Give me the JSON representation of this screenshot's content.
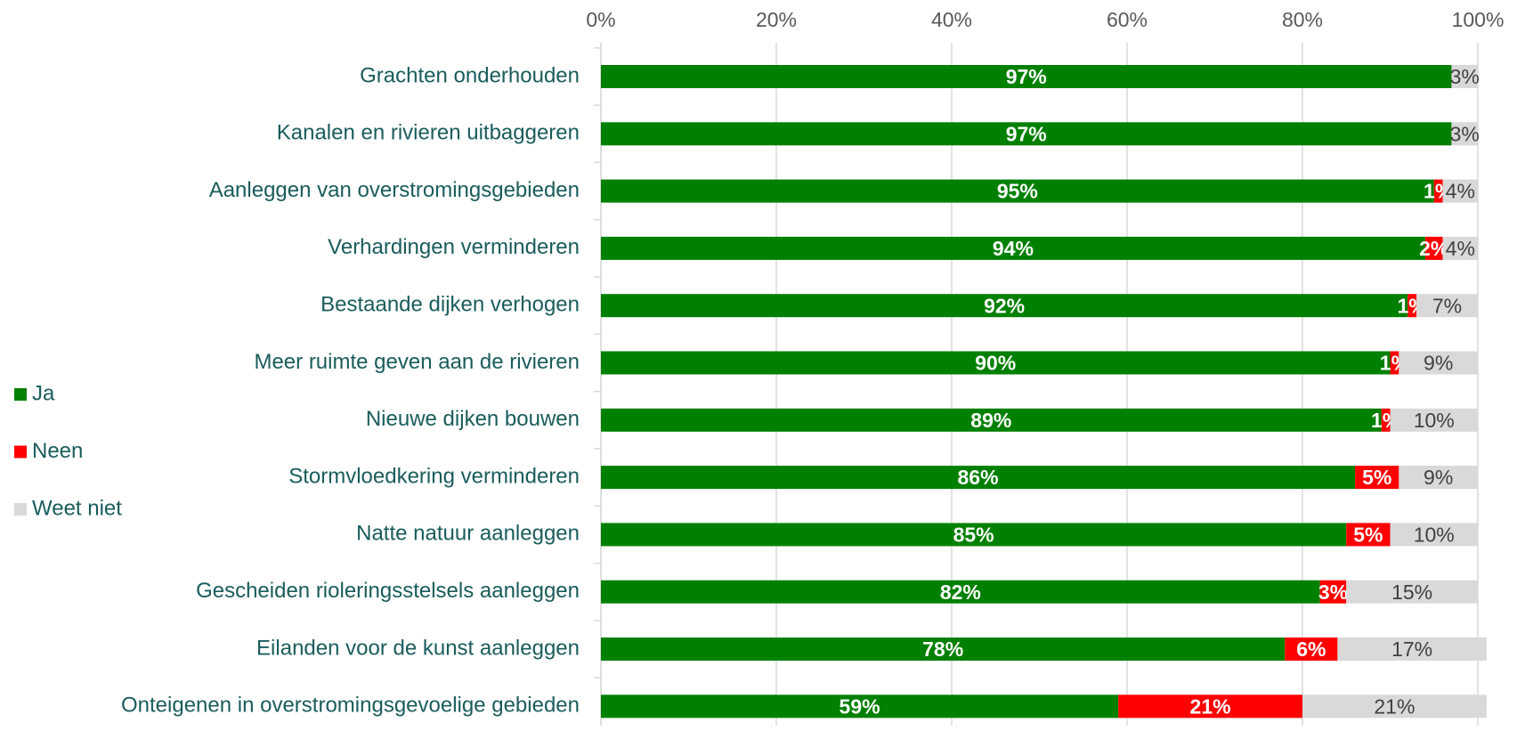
{
  "chart_data": {
    "type": "stacked_bar_horizontal",
    "categories": [
      "Grachten onderhouden",
      "Kanalen en rivieren uitbaggeren",
      "Aanleggen van overstromingsgebieden",
      "Verhardingen verminderen",
      "Bestaande dijken verhogen",
      "Meer ruimte geven aan de rivieren",
      "Nieuwe dijken bouwen",
      "Stormvloedkering verminderen",
      "Natte natuur aanleggen",
      "Gescheiden rioleringsstelsels aanleggen",
      "Eilanden voor de kunst aanleggen",
      "Onteigenen in overstromingsgevoelige gebieden"
    ],
    "series": [
      {
        "name": "Ja",
        "color": "#008000",
        "values": [
          97,
          97,
          95,
          94,
          92,
          90,
          89,
          86,
          85,
          82,
          78,
          59
        ],
        "value_labels": [
          "97%",
          "97%",
          "95%",
          "94%",
          "92%",
          "90%",
          "89%",
          "86%",
          "85%",
          "82%",
          "78%",
          "59%"
        ]
      },
      {
        "name": "Neen",
        "color": "#ff0000",
        "values": [
          null,
          null,
          1,
          2,
          1,
          1,
          1,
          5,
          5,
          3,
          6,
          21
        ],
        "value_labels": [
          null,
          null,
          "1%",
          "2%",
          "1%",
          "1%",
          "1%",
          "5%",
          "5%",
          "3%",
          "6%",
          "21%"
        ]
      },
      {
        "name": "Weet niet",
        "color": "#d9d9d9",
        "values": [
          3,
          3,
          4,
          4,
          7,
          9,
          10,
          9,
          10,
          15,
          17,
          21
        ],
        "value_labels": [
          "3%",
          "3%",
          "4%",
          "4%",
          "7%",
          "9%",
          "10%",
          "9%",
          "10%",
          "15%",
          "17%",
          "21%"
        ]
      }
    ],
    "xlim": [
      0,
      100
    ],
    "xticks": [
      {
        "value": 0,
        "label": "0%"
      },
      {
        "value": 20,
        "label": "20%"
      },
      {
        "value": 40,
        "label": "40%"
      },
      {
        "value": 60,
        "label": "60%"
      },
      {
        "value": 80,
        "label": "80%"
      },
      {
        "value": 100,
        "label": "100%"
      }
    ],
    "grid": true,
    "legend": "left"
  }
}
